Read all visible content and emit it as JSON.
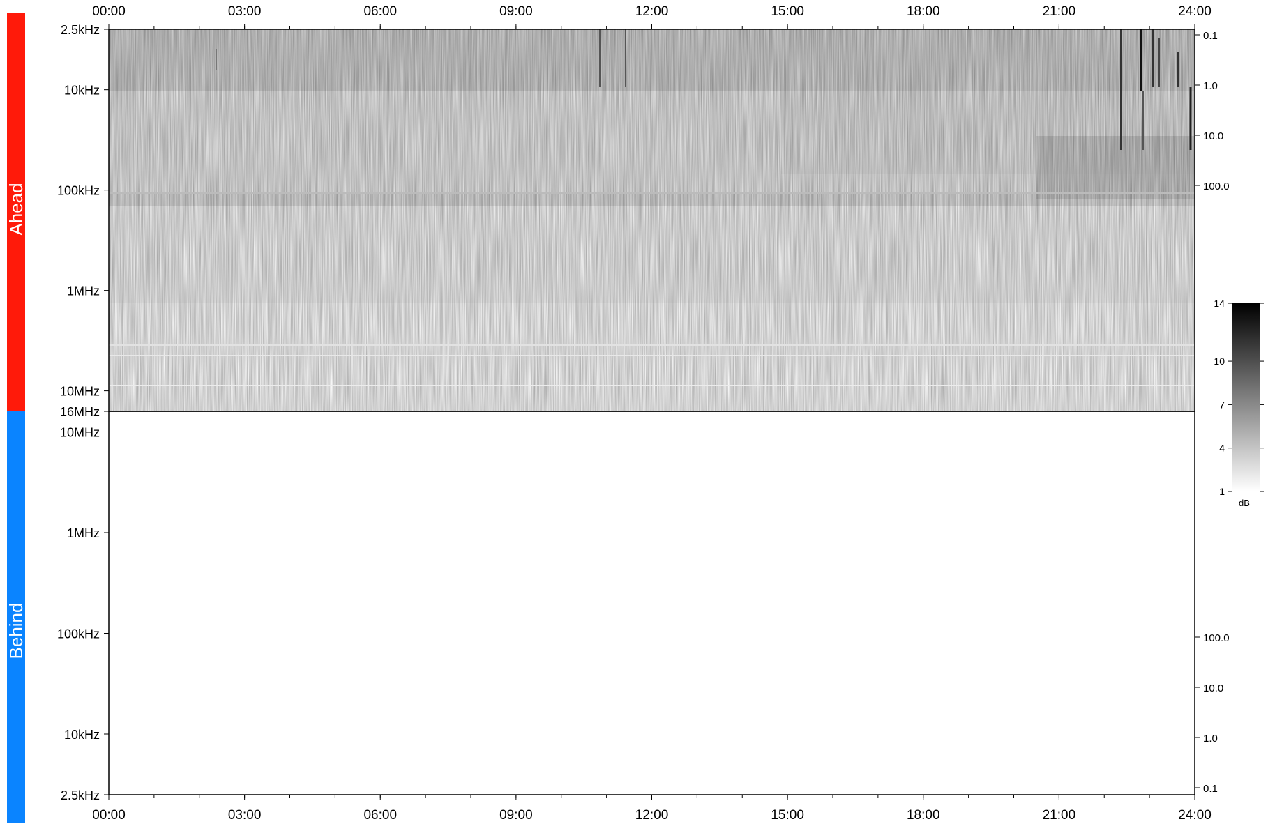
{
  "chart_data": {
    "type": "heatmap",
    "x_ticks": [
      "00:00",
      "03:00",
      "06:00",
      "09:00",
      "12:00",
      "15:00",
      "18:00",
      "21:00",
      "24:00"
    ],
    "x_range_hours": [
      0,
      24
    ],
    "panels": [
      {
        "name": "Ahead",
        "color": "#ff1a0a",
        "freq_ticks": [
          "2.5kHz",
          "10kHz",
          "100kHz",
          "1MHz",
          "10MHz",
          "16MHz"
        ],
        "right_ticks": [
          "0.1",
          "1.0",
          "10.0",
          "100.0"
        ],
        "has_data": true
      },
      {
        "name": "Behind",
        "color": "#0a84ff",
        "freq_ticks": [
          "10MHz",
          "1MHz",
          "100kHz",
          "10kHz",
          "2.5kHz"
        ],
        "right_ticks": [
          "100.0",
          "10.0",
          "1.0",
          "0.1"
        ],
        "has_data": false
      }
    ],
    "colorbar": {
      "unit": "dB",
      "ticks": [
        "14",
        "10",
        "7",
        "4",
        "1"
      ],
      "range": [
        1,
        14
      ],
      "colors": [
        "#ffffff",
        "#000000"
      ]
    }
  }
}
